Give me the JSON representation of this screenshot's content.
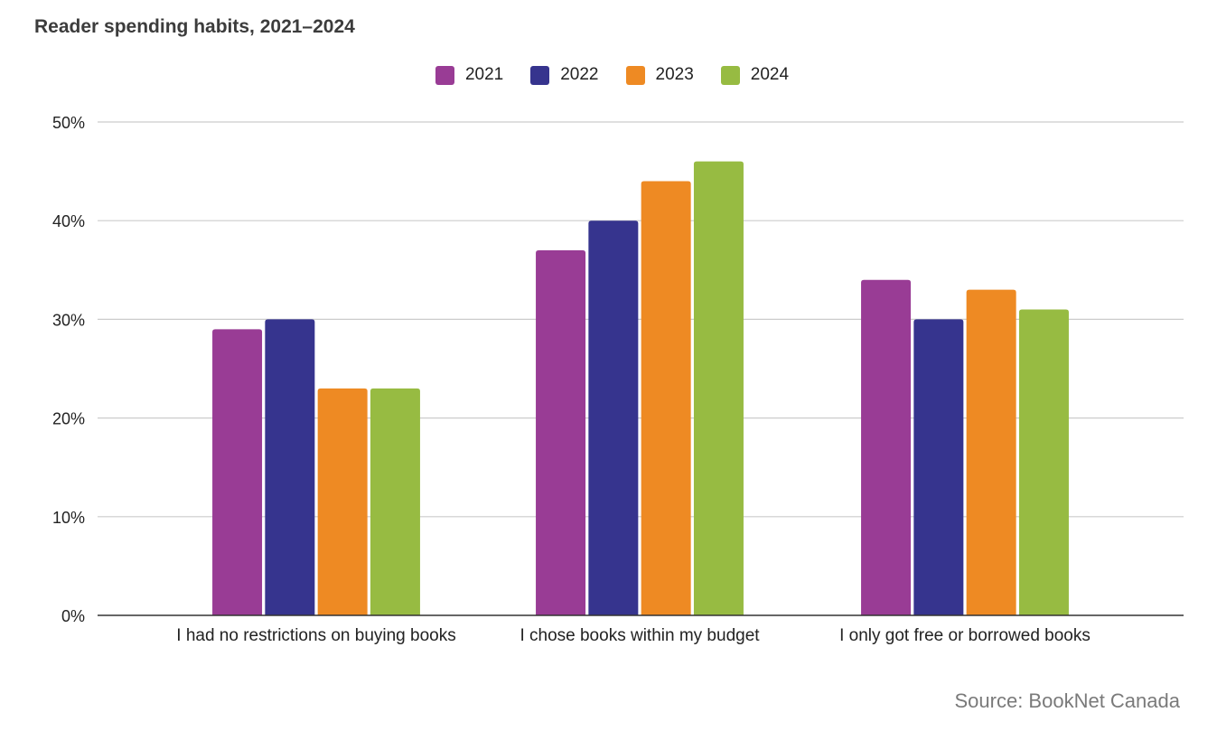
{
  "chart_data": {
    "type": "bar",
    "title": "Reader spending habits, 2021–2024",
    "xlabel": "",
    "ylabel": "",
    "categories": [
      "I had no restrictions on buying books",
      "I chose books within my budget",
      "I only got free or borrowed books"
    ],
    "series": [
      {
        "name": "2021",
        "color": "#993c95",
        "values": [
          29,
          37,
          34
        ]
      },
      {
        "name": "2022",
        "color": "#36348e",
        "values": [
          30,
          40,
          30
        ]
      },
      {
        "name": "2023",
        "color": "#ee8a23",
        "values": [
          23,
          44,
          33
        ]
      },
      {
        "name": "2024",
        "color": "#97bb42",
        "values": [
          23,
          46,
          31
        ]
      }
    ],
    "ylim": [
      0,
      50
    ],
    "yticks": [
      "0%",
      "10%",
      "20%",
      "30%",
      "40%",
      "50%"
    ],
    "grid": true,
    "legend_position": "top-center",
    "source": "Source: BookNet Canada"
  }
}
